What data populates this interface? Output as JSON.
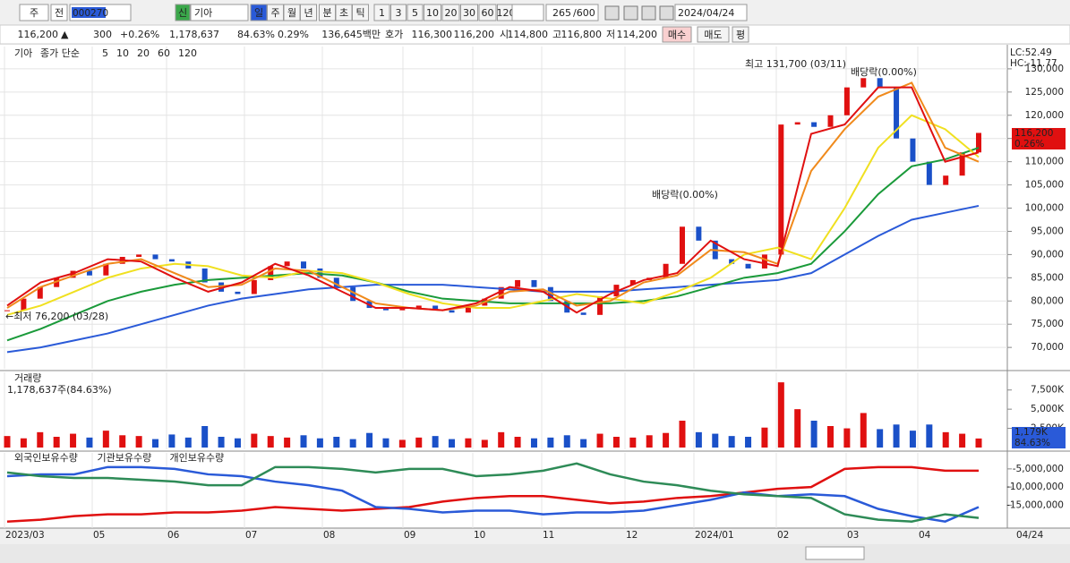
{
  "toolbar": {
    "period": "주",
    "prev": "전",
    "code": "000270",
    "new_tag": "신",
    "name": "기아",
    "units": [
      "일",
      "주",
      "월",
      "년",
      "분",
      "초",
      "틱"
    ],
    "intervals": [
      "1",
      "3",
      "5",
      "10",
      "20",
      "30",
      "60",
      "120"
    ],
    "count": "265",
    "max_count": "/600",
    "date": "2024/04/24"
  },
  "info_bar": {
    "price": "116,200",
    "arrow": "▲",
    "change": "300",
    "change_pct": "+0.26%",
    "volume": "1,178,637",
    "volume_ratio": "84.63%",
    "turnover": "0.29%",
    "amount": "136,645백만",
    "quote_label": "호가",
    "ask": "116,300",
    "bid": "116,200",
    "open_label": "시",
    "open": "114,800",
    "high_label": "고",
    "high": "116,800",
    "low_label": "저",
    "low": "114,200",
    "buttons": [
      "매수",
      "매도",
      "평"
    ]
  },
  "price_panel": {
    "type": "candlestick",
    "legend": {
      "stock": "기아",
      "method": "종가 단순"
    },
    "ylim": [
      65400,
      134800
    ],
    "yticks": [
      {
        "value": 70000,
        "label": "70,000"
      },
      {
        "value": 75000,
        "label": "75,000"
      },
      {
        "value": 80000,
        "label": "80,000"
      },
      {
        "value": 85000,
        "label": "85,000"
      },
      {
        "value": 90000,
        "label": "90,000"
      },
      {
        "value": 95000,
        "label": "95,000"
      },
      {
        "value": 100000,
        "label": "100,000"
      },
      {
        "value": 105000,
        "label": "105,000"
      },
      {
        "value": 110000,
        "label": "110,000"
      },
      {
        "value": 115000,
        "label": "115,000"
      },
      {
        "value": 120000,
        "label": "120,000"
      },
      {
        "value": 125000,
        "label": "125,000"
      },
      {
        "value": 130000,
        "label": "130,000"
      }
    ],
    "close": [
      78000,
      80500,
      83000,
      85000,
      86500,
      85500,
      88000,
      89500,
      90000,
      89000,
      88500,
      87000,
      84000,
      82000,
      81500,
      84500,
      87500,
      88500,
      87000,
      85000,
      83000,
      80000,
      78500,
      78000,
      78500,
      79000,
      78000,
      77500,
      79000,
      80500,
      83000,
      84500,
      83000,
      80000,
      77500,
      77000,
      81000,
      83500,
      84500,
      85000,
      88000,
      96000,
      93000,
      89000,
      88000,
      87000,
      90000,
      118000,
      118500,
      117500,
      120000,
      126000,
      128000,
      126000,
      115000,
      110000,
      105000,
      107000,
      112000,
      116200
    ],
    "series": [
      {
        "name": "5",
        "color": "#e01010",
        "values": [
          79000,
          84000,
          86000,
          89000,
          88500,
          85000,
          82000,
          84000,
          88000,
          85500,
          82000,
          78500,
          78500,
          78000,
          79500,
          83000,
          82000,
          77500,
          81500,
          84500,
          86000,
          93000,
          89000,
          87500,
          116000,
          118000,
          126000,
          126000,
          110000,
          112000
        ]
      },
      {
        "name": "10",
        "color": "#f08a1c",
        "values": [
          78500,
          83000,
          85500,
          88000,
          89000,
          86000,
          83000,
          83500,
          87000,
          86500,
          83000,
          79500,
          78500,
          78000,
          79000,
          82000,
          82500,
          79000,
          80000,
          84000,
          85500,
          91000,
          90500,
          88000,
          108000,
          117000,
          124000,
          127000,
          113000,
          110000
        ]
      },
      {
        "name": "20",
        "color": "#f0e020",
        "values": [
          77000,
          79000,
          82000,
          85000,
          87000,
          88000,
          87500,
          85500,
          85000,
          86500,
          86000,
          84000,
          81500,
          79500,
          78500,
          78500,
          80000,
          81500,
          80500,
          79500,
          82000,
          85000,
          90000,
          91500,
          89000,
          100000,
          113000,
          120000,
          117000,
          111000
        ]
      },
      {
        "name": "60",
        "color": "#1a9a3a",
        "values": [
          71500,
          74000,
          77000,
          80000,
          82000,
          83500,
          84500,
          85000,
          85500,
          86000,
          85500,
          84000,
          82000,
          80500,
          80000,
          79500,
          79500,
          79500,
          79500,
          80000,
          81000,
          83000,
          85000,
          86000,
          88000,
          95000,
          103000,
          109000,
          110500,
          113000
        ]
      },
      {
        "name": "120",
        "color": "#2a5ad8",
        "values": [
          69000,
          70000,
          71500,
          73000,
          75000,
          77000,
          79000,
          80500,
          81500,
          82500,
          83000,
          83500,
          83500,
          83500,
          83000,
          82500,
          82000,
          82000,
          82000,
          82500,
          83000,
          83500,
          84000,
          84500,
          86000,
          90000,
          94000,
          97500,
          99000,
          100500
        ]
      }
    ],
    "annotations": {
      "high": "최고 131,700 (03/11)",
      "dividend_1": "배당락(0.00%)",
      "dividend_2": "배당락(0.00%)",
      "low": "←최저 76,200 (03/28)"
    },
    "indicators": {
      "lc": "LC:52.49",
      "hc": "HC:-11.77"
    },
    "current": {
      "price": "116,200",
      "pct": "0.26%"
    }
  },
  "volume_panel": {
    "type": "bar",
    "title": "거래량",
    "summary": "1,178,637주(84.63%)",
    "ylim": [
      0,
      9800
    ],
    "yticks": [
      {
        "value": 2500,
        "label": "2,500K"
      },
      {
        "value": 5000,
        "label": "5,000K"
      },
      {
        "value": 7500,
        "label": "7,500K"
      }
    ],
    "values": [
      1500,
      1200,
      2000,
      1400,
      1800,
      1300,
      2200,
      1600,
      1500,
      1100,
      1700,
      1300,
      2800,
      1400,
      1200,
      1800,
      1500,
      1300,
      1600,
      1200,
      1400,
      1100,
      1900,
      1200,
      1000,
      1300,
      1500,
      1100,
      1200,
      1000,
      2000,
      1400,
      1200,
      1300,
      1600,
      1100,
      1800,
      1400,
      1300,
      1600,
      1900,
      3500,
      2000,
      1800,
      1500,
      1400,
      2600,
      8500,
      5000,
      3500,
      2800,
      2500,
      4500,
      2400,
      3000,
      2200,
      3000,
      2000,
      1800,
      1179
    ],
    "current": {
      "value": "1,179K",
      "pct": "84.63%"
    }
  },
  "holding_panel": {
    "type": "line",
    "ylim": [
      -21300000,
      -600000
    ],
    "yticks": [
      {
        "value": -5000000,
        "label": "-5,000,000"
      },
      {
        "value": -10000000,
        "label": "-10,000,000"
      },
      {
        "value": -15000000,
        "label": "-15,000,000"
      }
    ],
    "series": [
      {
        "name": "외국인보유수량",
        "color": "#e01010",
        "values": [
          -19500000,
          -19000000,
          -18000000,
          -17500000,
          -17500000,
          -17000000,
          -17000000,
          -16500000,
          -15500000,
          -16000000,
          -16500000,
          -16000000,
          -15500000,
          -14000000,
          -13000000,
          -12500000,
          -12500000,
          -13500000,
          -14500000,
          -14000000,
          -13000000,
          -12500000,
          -11500000,
          -10500000,
          -10000000,
          -5000000,
          -4500000,
          -4500000,
          -5500000,
          -5500000
        ]
      },
      {
        "name": "기관보유수량",
        "color": "#2a5ad8",
        "values": [
          -7000000,
          -6500000,
          -6500000,
          -4500000,
          -4500000,
          -5000000,
          -6500000,
          -7000000,
          -8500000,
          -9500000,
          -11000000,
          -15500000,
          -16000000,
          -17000000,
          -16500000,
          -16500000,
          -17500000,
          -17000000,
          -17000000,
          -16500000,
          -15000000,
          -13500000,
          -11500000,
          -12500000,
          -12000000,
          -12500000,
          -16000000,
          -18000000,
          -19500000,
          -15500000
        ]
      },
      {
        "name": "개인보유수량",
        "color": "#2e8b57",
        "values": [
          -6000000,
          -7000000,
          -7500000,
          -7500000,
          -8000000,
          -8500000,
          -9500000,
          -9500000,
          -4500000,
          -4500000,
          -5000000,
          -6000000,
          -5000000,
          -5000000,
          -7000000,
          -6500000,
          -5500000,
          -3500000,
          -6500000,
          -8500000,
          -9500000,
          -11000000,
          -12000000,
          -12500000,
          -13000000,
          -17500000,
          -19000000,
          -19500000,
          -17500000,
          -18500000
        ]
      }
    ]
  },
  "x_axis": {
    "labels": [
      "2023/03",
      "05",
      "06",
      "07",
      "08",
      "09",
      "10",
      "11",
      "12",
      "2024/01",
      "02",
      "03",
      "04"
    ],
    "end": "04/24"
  }
}
